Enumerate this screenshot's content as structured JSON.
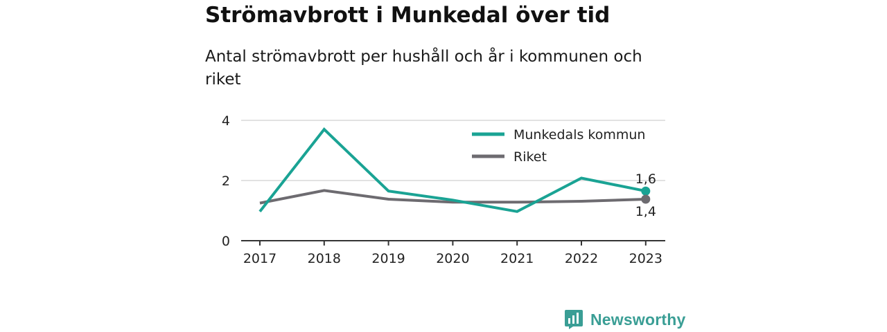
{
  "title": "Strömavbrott i Munkedal över tid",
  "subtitle": "Antal strömavbrott per hushåll och år i kommunen och riket",
  "brand": {
    "name": "Newsworthy",
    "color": "#3a9e95"
  },
  "chart_data": {
    "type": "line",
    "x": [
      "2017",
      "2018",
      "2019",
      "2020",
      "2021",
      "2022",
      "2023"
    ],
    "series": [
      {
        "name": "Munkedals kommun",
        "color": "#1aa394",
        "values": [
          0.97,
          3.7,
          1.65,
          1.35,
          0.97,
          2.08,
          1.65
        ],
        "end_label": "1,6"
      },
      {
        "name": "Riket",
        "color": "#6d6b70",
        "values": [
          1.25,
          1.67,
          1.38,
          1.28,
          1.28,
          1.31,
          1.38
        ],
        "end_label": "1,4"
      }
    ],
    "yticks": [
      "0",
      "2",
      "4"
    ],
    "ylim": [
      0,
      4
    ],
    "grid": true,
    "legend_position": "top-right"
  }
}
